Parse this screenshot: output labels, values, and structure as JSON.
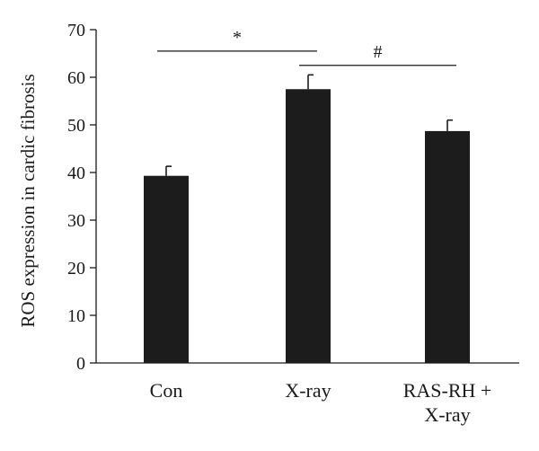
{
  "chart_data": {
    "type": "bar",
    "categories": [
      "Con",
      "X-ray",
      "RAS-RH + X-ray"
    ],
    "category_lines": [
      [
        "Con"
      ],
      [
        "X-ray"
      ],
      [
        "RAS-RH +",
        "X-ray"
      ]
    ],
    "values": [
      39.3,
      57.5,
      48.7
    ],
    "errors": [
      2.0,
      3.0,
      2.3
    ],
    "ylabel": "ROS expression in cardic fibrosis",
    "ylim": [
      0,
      70
    ],
    "yticks": [
      0,
      10,
      20,
      30,
      40,
      50,
      60,
      70
    ],
    "bar_color": "#1c1c1c",
    "grid": false,
    "significance": [
      {
        "from": 0,
        "to": 1,
        "label": "*",
        "y": 65.5
      },
      {
        "from": 1,
        "to": 2,
        "label": "#",
        "y": 62.5
      }
    ]
  }
}
